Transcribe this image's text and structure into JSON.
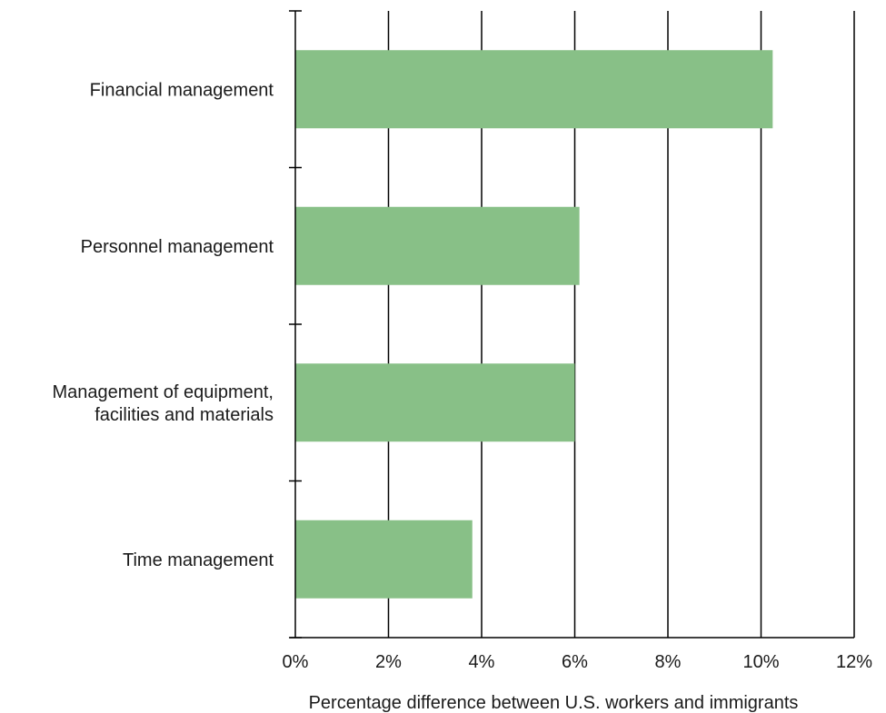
{
  "chart_data": {
    "type": "bar",
    "orientation": "horizontal",
    "categories": [
      [
        "Financial management"
      ],
      [
        "Personnel management"
      ],
      [
        "Management of equipment,",
        "facilities and materials"
      ],
      [
        "Time management"
      ]
    ],
    "values": [
      10.25,
      6.1,
      6.0,
      3.8
    ],
    "xlabel": "Percentage difference between U.S. workers and immigrants",
    "xticks": [
      "0%",
      "2%",
      "4%",
      "6%",
      "8%",
      "10%",
      "12%"
    ],
    "xlim": [
      0,
      12
    ],
    "grid": "vertical",
    "legend": "none",
    "bar_color": "#88c087",
    "grid_color": "#000000"
  }
}
